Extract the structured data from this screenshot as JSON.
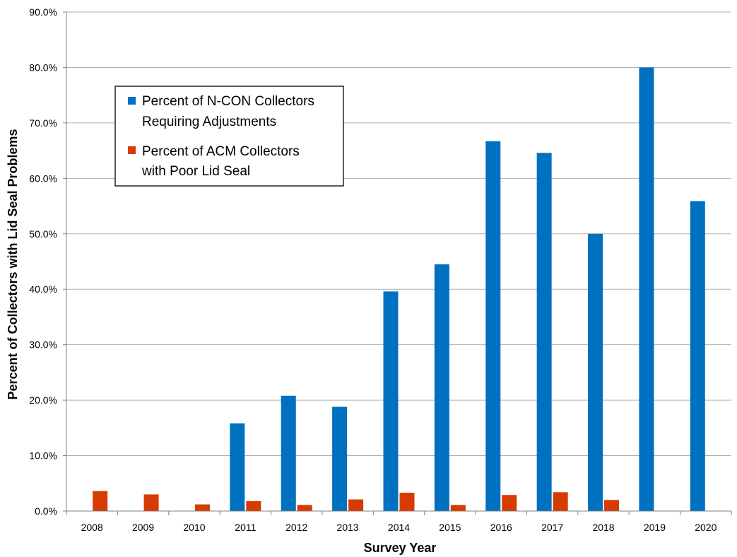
{
  "chart_data": {
    "type": "bar",
    "xlabel": "Survey Year",
    "ylabel": "Percent of Collectors with Lid Seal Problems",
    "ylim": [
      0,
      90
    ],
    "yticks": [
      "0.0%",
      "10.0%",
      "20.0%",
      "30.0%",
      "40.0%",
      "50.0%",
      "60.0%",
      "70.0%",
      "80.0%",
      "90.0%"
    ],
    "categories": [
      "2008",
      "2009",
      "2010",
      "2011",
      "2012",
      "2013",
      "2014",
      "2015",
      "2016",
      "2017",
      "2018",
      "2019",
      "2020"
    ],
    "grid": true,
    "legend_position": "top-left",
    "series": [
      {
        "name": "Percent of N-CON Collectors Requiring Adjustments",
        "legend_lines": [
          "Percent of N-CON Collectors",
          "Requiring Adjustments"
        ],
        "color": "#0070C0",
        "values": [
          null,
          null,
          null,
          15.8,
          20.8,
          18.8,
          39.6,
          44.5,
          66.7,
          64.6,
          50.0,
          80.0,
          55.9
        ]
      },
      {
        "name": "Percent of ACM Collectors with Poor Lid Seal",
        "legend_lines": [
          "Percent of ACM Collectors",
          "with Poor Lid Seal"
        ],
        "color": "#D83B01",
        "values": [
          3.6,
          3.0,
          1.2,
          1.8,
          1.1,
          2.1,
          3.3,
          1.1,
          2.9,
          3.4,
          2.0,
          null,
          null
        ]
      }
    ]
  }
}
